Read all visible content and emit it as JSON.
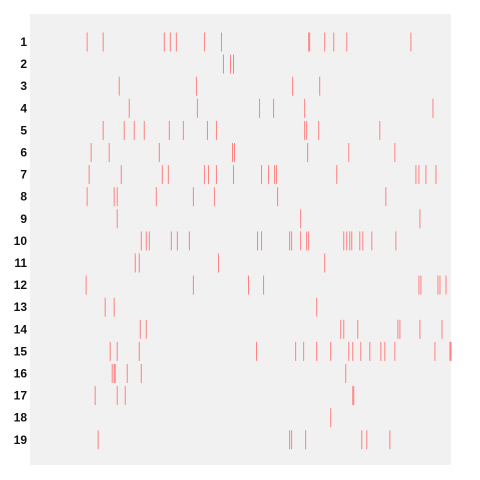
{
  "chart_data": {
    "type": "raster",
    "title": "",
    "xlabel": "",
    "ylabel": "",
    "xlim": [
      0,
      420
    ],
    "grid": false,
    "colors": {
      "panel": "#f1f1f1",
      "tick": "#ff8080",
      "label": "#111111"
    },
    "rows": [
      {
        "label": "1",
        "events": [
          57,
          73,
          134,
          140,
          146,
          174,
          191,
          278,
          279,
          294,
          303,
          316,
          380
        ]
      },
      {
        "label": "2",
        "events": [
          193,
          200,
          203
        ]
      },
      {
        "label": "3",
        "events": [
          89,
          166,
          262,
          289
        ]
      },
      {
        "label": "4",
        "events": [
          99,
          167,
          229,
          243,
          274,
          402
        ]
      },
      {
        "label": "5",
        "events": [
          73,
          94,
          104,
          114,
          139,
          153,
          177,
          186,
          274,
          276,
          288,
          349
        ]
      },
      {
        "label": "6",
        "events": [
          61,
          79,
          129,
          202,
          204,
          277,
          318,
          364
        ]
      },
      {
        "label": "7",
        "events": [
          59,
          91,
          132,
          138,
          174,
          178,
          186,
          203,
          231,
          238,
          244,
          246,
          306,
          385,
          388,
          395,
          405
        ]
      },
      {
        "label": "8",
        "events": [
          57,
          84,
          87,
          126,
          163,
          184,
          247,
          355
        ]
      },
      {
        "label": "9",
        "events": [
          87,
          270,
          389
        ]
      },
      {
        "label": "10",
        "events": [
          111,
          116,
          119,
          141,
          147,
          159,
          227,
          231,
          259,
          261,
          270,
          276,
          278,
          313,
          316,
          319,
          321,
          329,
          332,
          341,
          365
        ]
      },
      {
        "label": "11",
        "events": [
          105,
          109,
          188,
          294
        ]
      },
      {
        "label": "12",
        "events": [
          56,
          163,
          218,
          233,
          388,
          390,
          407,
          409,
          415
        ]
      },
      {
        "label": "13",
        "events": [
          75,
          84,
          286
        ]
      },
      {
        "label": "14",
        "events": [
          110,
          116,
          310,
          313,
          327,
          367,
          369,
          389,
          411
        ]
      },
      {
        "label": "15",
        "events": [
          80,
          87,
          109,
          226,
          265,
          273,
          286,
          300,
          318,
          322,
          330,
          339,
          350,
          354,
          364,
          404,
          419,
          420
        ]
      },
      {
        "label": "16",
        "events": [
          82,
          84,
          85,
          97,
          111,
          315
        ]
      },
      {
        "label": "17",
        "events": [
          65,
          87,
          95,
          322,
          323
        ]
      },
      {
        "label": "18",
        "events": [
          300
        ]
      },
      {
        "label": "19",
        "events": [
          68,
          259,
          261,
          275,
          331,
          336,
          359
        ]
      }
    ]
  }
}
